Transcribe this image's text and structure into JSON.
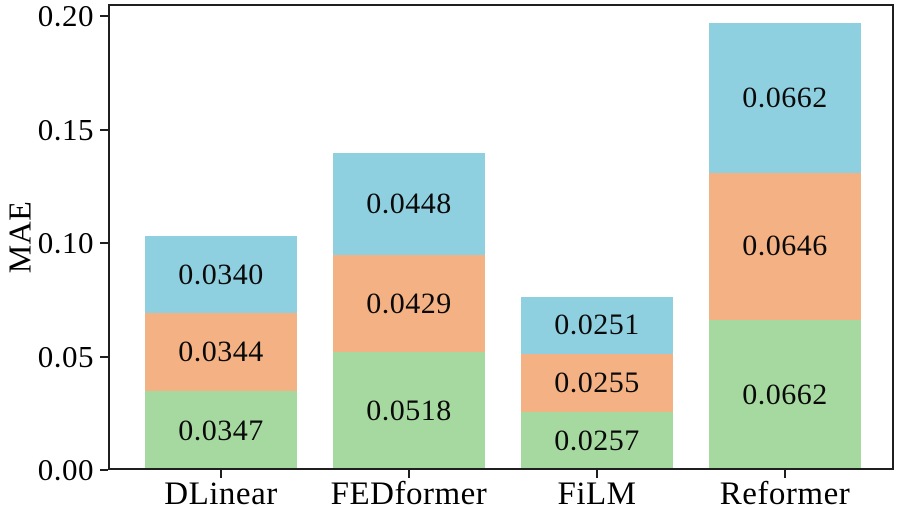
{
  "figure": {
    "background": "#ffffff",
    "axis_color": "#1f1f1f",
    "text_color": "#000000"
  },
  "chart_data": {
    "type": "bar",
    "stacked": true,
    "title": "",
    "xlabel": "",
    "ylabel": "MAE",
    "categories": [
      "DLinear",
      "FEDformer",
      "FiLM",
      "Reformer"
    ],
    "series": [
      {
        "name": "bottom-segment",
        "color": "#A6D99F",
        "values": [
          0.0347,
          0.0518,
          0.0257,
          0.0662
        ],
        "labels": [
          "0.0347",
          "0.0518",
          "0.0257",
          "0.0662"
        ]
      },
      {
        "name": "middle-segment",
        "color": "#F4B183",
        "values": [
          0.0344,
          0.0429,
          0.0255,
          0.0646
        ],
        "labels": [
          "0.0344",
          "0.0429",
          "0.0255",
          "0.0646"
        ]
      },
      {
        "name": "top-segment",
        "color": "#8FD0E0",
        "values": [
          0.034,
          0.0448,
          0.0251,
          0.0662
        ],
        "labels": [
          "0.0340",
          "0.0448",
          "0.0251",
          "0.0662"
        ]
      }
    ],
    "yticks": {
      "values": [
        0,
        0.05,
        0.1,
        0.15,
        0.2
      ],
      "labels": [
        "0.00",
        "0.05",
        "0.10",
        "0.15",
        "0.20"
      ]
    },
    "ylim": [
      0,
      0.2053
    ],
    "grid": false,
    "legend": "none"
  }
}
